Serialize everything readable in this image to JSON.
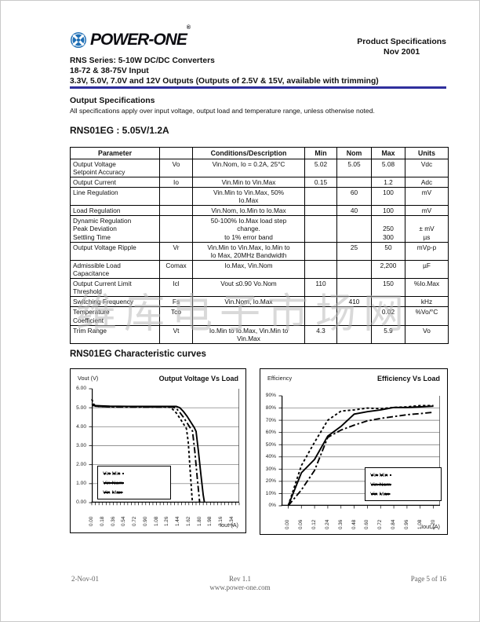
{
  "header": {
    "brand": "POWER-ONE",
    "brand_reg": "®",
    "doc_type": "Product Specifications",
    "doc_date": "Nov 2001",
    "title_line1": "RNS Series: 5-10W DC/DC Converters",
    "title_line2": "18-72 & 38-75V Input",
    "title_line3": "3.3V, 5.0V, 7.0V and 12V Outputs (Outputs of 2.5V & 15V, available with trimming)"
  },
  "section": {
    "heading": "Output Specifications",
    "note": "All specifications apply over input voltage, output load and temperature range, unless otherwise noted.",
    "model_heading": "RNS01EG : 5.05V/1.2A",
    "charts_heading": "RNS01EG Characteristic curves"
  },
  "table": {
    "headers": [
      "Parameter",
      "",
      "Conditions/Description",
      "Min",
      "Nom",
      "Max",
      "Units"
    ],
    "rows": [
      [
        "Output Voltage\nSetpoint Accuracy",
        "Vo",
        "Vin.Nom, Io = 0.2A, 25°C",
        "5.02",
        "5.05",
        "5.08",
        "Vdc"
      ],
      [
        "Output Current",
        "Io",
        "Vin.Min to Vin.Max",
        "0.15",
        "",
        "1.2",
        "Adc"
      ],
      [
        "Line Regulation",
        "",
        "Vin.Min to Vin.Max, 50%\nIo.Max",
        "",
        "60",
        "100",
        "mV"
      ],
      [
        "Load Regulation",
        "",
        "Vin.Nom, Io.Min to Io.Max",
        "",
        "40",
        "100",
        "mV"
      ],
      [
        "Dynamic Regulation\nPeak Deviation\nSettling Time",
        "",
        "50-100% Io.Max load step\nchange.\nto 1% error band",
        "",
        "",
        "\n250\n300",
        "\n± mV\nµs"
      ],
      [
        "Output Voltage Ripple",
        "Vr",
        "Vin.Min to Vin.Max, Io.Min to\nIo Max, 20MHz Bandwidth",
        "",
        "25",
        "50",
        "mVp-p"
      ],
      [
        "Admissible Load\nCapacitance",
        "Comax",
        "Io.Max, Vin.Nom",
        "",
        "",
        "2,200",
        "µF"
      ],
      [
        "Output Current Limit\nThreshold",
        "Icl",
        "Vout  ≤0.90 Vo.Nom",
        "110",
        "",
        "150",
        "%Io.Max"
      ],
      [
        "Switching Frequency",
        "Fs",
        "Vin.Nom, Io.Max",
        "",
        "410",
        "",
        "kHz"
      ],
      [
        "Temperature\nCoefficient",
        "Tco",
        "",
        "",
        "",
        "0.02",
        "%Vo/°C"
      ],
      [
        "Trim Range",
        "Vt",
        "Io.Min to Io.Max, Vin.Min to\nVin.Max",
        "4.3",
        "",
        "5.9",
        "Vo"
      ]
    ]
  },
  "chart_data": [
    {
      "type": "line",
      "title": "Output Voltage Vs Load",
      "ylabel": "Vout (V)",
      "xlabel": "Iout (A)",
      "ylim": [
        0,
        6
      ],
      "xlim": [
        0,
        2.46
      ],
      "y_ticks": [
        [
          "0.00",
          0
        ],
        [
          "1.00",
          1
        ],
        [
          "2.00",
          2
        ],
        [
          "3.00",
          3
        ],
        [
          "4.00",
          4
        ],
        [
          "5.00",
          5
        ],
        [
          "6.00",
          6
        ]
      ],
      "y_gridlines": [
        1,
        2,
        3,
        4,
        5
      ],
      "x_ticks": [
        "0.00",
        "0.18",
        "0.36",
        "0.54",
        "0.72",
        "0.90",
        "1.08",
        "1.26",
        "1.44",
        "1.62",
        "1.80",
        "1.98",
        "2.16",
        "2.34"
      ],
      "minor_tick_step": 0.06,
      "grid": "horizontal",
      "legend_position": "inside-bottom-left",
      "series": [
        {
          "name": "Vin Min",
          "style": "dashed",
          "points": [
            [
              0,
              5.45
            ],
            [
              0.03,
              5.2
            ],
            [
              0.06,
              5.1
            ],
            [
              0.12,
              5.06
            ],
            [
              0.3,
              5.05
            ],
            [
              0.6,
              5.05
            ],
            [
              0.9,
              5.05
            ],
            [
              1.2,
              5.05
            ],
            [
              1.29,
              5.03
            ],
            [
              1.35,
              4.92
            ],
            [
              1.41,
              4.72
            ],
            [
              1.47,
              4.45
            ],
            [
              1.53,
              4.15
            ],
            [
              1.58,
              3.9
            ],
            [
              1.61,
              3.2
            ],
            [
              1.64,
              1.8
            ],
            [
              1.67,
              0.4
            ],
            [
              1.68,
              0
            ]
          ]
        },
        {
          "name": "Vin Nom",
          "style": "solid",
          "points": [
            [
              0,
              5.12
            ],
            [
              0.3,
              5.08
            ],
            [
              0.6,
              5.07
            ],
            [
              0.9,
              5.07
            ],
            [
              1.2,
              5.07
            ],
            [
              1.41,
              5.07
            ],
            [
              1.47,
              5.0
            ],
            [
              1.53,
              4.8
            ],
            [
              1.59,
              4.55
            ],
            [
              1.65,
              4.25
            ],
            [
              1.71,
              3.95
            ],
            [
              1.74,
              3.75
            ],
            [
              1.78,
              2.7
            ],
            [
              1.82,
              1.5
            ],
            [
              1.86,
              0.4
            ],
            [
              1.88,
              0
            ]
          ]
        },
        {
          "name": "Vin Max",
          "style": "longdash",
          "points": [
            [
              0,
              5.2
            ],
            [
              0.06,
              5.08
            ],
            [
              0.3,
              5.04
            ],
            [
              0.6,
              5.03
            ],
            [
              0.9,
              5.03
            ],
            [
              1.2,
              5.03
            ],
            [
              1.35,
              5.03
            ],
            [
              1.41,
              4.96
            ],
            [
              1.47,
              4.75
            ],
            [
              1.53,
              4.5
            ],
            [
              1.59,
              4.2
            ],
            [
              1.65,
              3.9
            ],
            [
              1.68,
              3.78
            ],
            [
              1.72,
              2.7
            ],
            [
              1.76,
              1.3
            ],
            [
              1.8,
              0
            ]
          ]
        }
      ]
    },
    {
      "type": "line",
      "title": "Efficiency Vs Load",
      "ylabel": "Efficiency",
      "xlabel": "Iout (A)",
      "ylim": [
        0,
        90
      ],
      "y_ticks": [
        [
          "0%",
          0
        ],
        [
          "10%",
          10
        ],
        [
          "20%",
          20
        ],
        [
          "30%",
          30
        ],
        [
          "40%",
          40
        ],
        [
          "50%",
          50
        ],
        [
          "60%",
          60
        ],
        [
          "70%",
          70
        ],
        [
          "80%",
          80
        ],
        [
          "90%",
          90
        ]
      ],
      "y_gridlines": [
        10,
        20,
        30,
        40,
        50,
        60,
        70,
        80
      ],
      "categories": [
        "0.00",
        "0.06",
        "0.12",
        "0.24",
        "0.36",
        "0.48",
        "0.60",
        "0.72",
        "0.84",
        "0.96",
        "1.08",
        "1.20"
      ],
      "x_ticks": [
        "0.00",
        "0.06",
        "0.12",
        "0.24",
        "0.36",
        "0.48",
        "0.60",
        "0.72",
        "0.84",
        "0.96",
        "1.08",
        "1.20"
      ],
      "grid": "horizontal",
      "legend_position": "inside-bottom-right",
      "series": [
        {
          "name": "Vin Min",
          "style": "dashed",
          "values": [
            0,
            33,
            52,
            70,
            77.5,
            78.5,
            80,
            79.5,
            80.5,
            81,
            82,
            82
          ]
        },
        {
          "name": "Vin Nom",
          "style": "solid",
          "values": [
            0,
            27,
            38,
            57,
            65,
            75,
            77,
            78.5,
            80.5,
            80.5,
            81,
            81.5
          ]
        },
        {
          "name": "Vin Max",
          "style": "longdash",
          "values": [
            0,
            13,
            29,
            56,
            62,
            66,
            69.5,
            71.5,
            73,
            74.5,
            75.5,
            76.5
          ]
        }
      ]
    }
  ],
  "watermark": "维库电子市场网",
  "footer": {
    "date": "2-Nov-01",
    "rev": "Rev 1.1",
    "url": "www.power-one.com",
    "page": "Page 5 of 16"
  },
  "colors": {
    "rule_blue": "#2f2f9d",
    "logo_blue": "#1f6fb5",
    "curve_black": "#000000"
  }
}
